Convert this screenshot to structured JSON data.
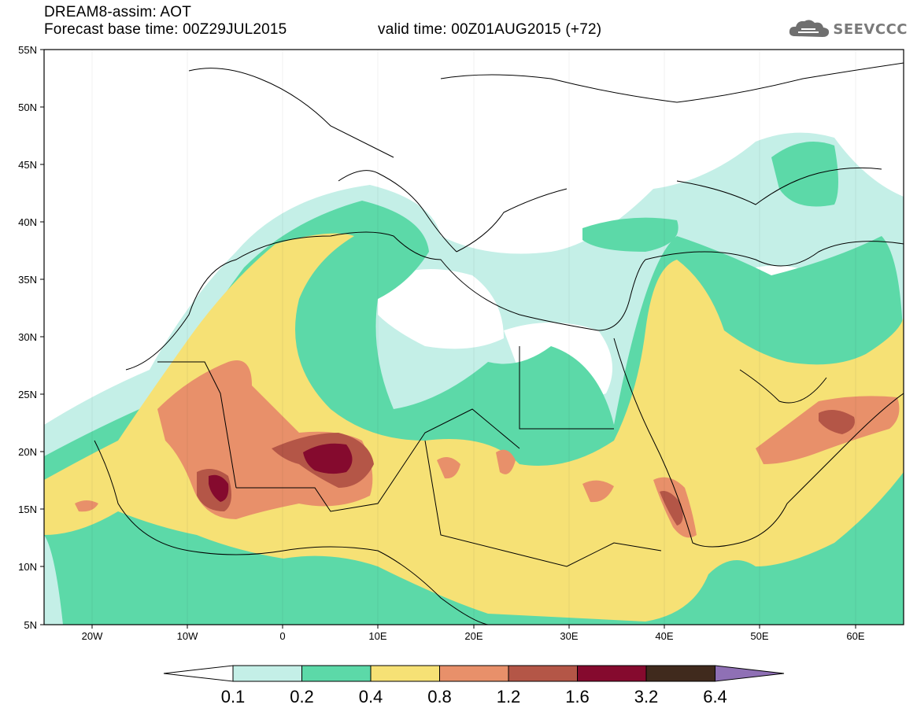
{
  "title": {
    "line1": "DREAM8-assim: AOT",
    "line2": "Forecast base time: 00Z29JUL2015",
    "valid": "valid time: 00Z01AUG2015 (+72)"
  },
  "logo": {
    "text": "SEEVCCC",
    "icon": "cloud-icon"
  },
  "axes": {
    "lon_ticks": [
      "20W",
      "10W",
      "0",
      "10E",
      "20E",
      "30E",
      "40E",
      "50E",
      "60E"
    ],
    "lat_ticks": [
      "55N",
      "50N",
      "45N",
      "40N",
      "35N",
      "30N",
      "25N",
      "20N",
      "15N",
      "10N",
      "5N"
    ]
  },
  "colorbar": {
    "levels": [
      "0.1",
      "0.2",
      "0.4",
      "0.8",
      "1.2",
      "1.6",
      "3.2",
      "6.4"
    ],
    "colors": [
      "#ffffff",
      "#c4efe7",
      "#5cd9a8",
      "#f6e175",
      "#e8906a",
      "#b45647",
      "#850a2e",
      "#402a1d",
      "#8f70b5"
    ]
  }
}
